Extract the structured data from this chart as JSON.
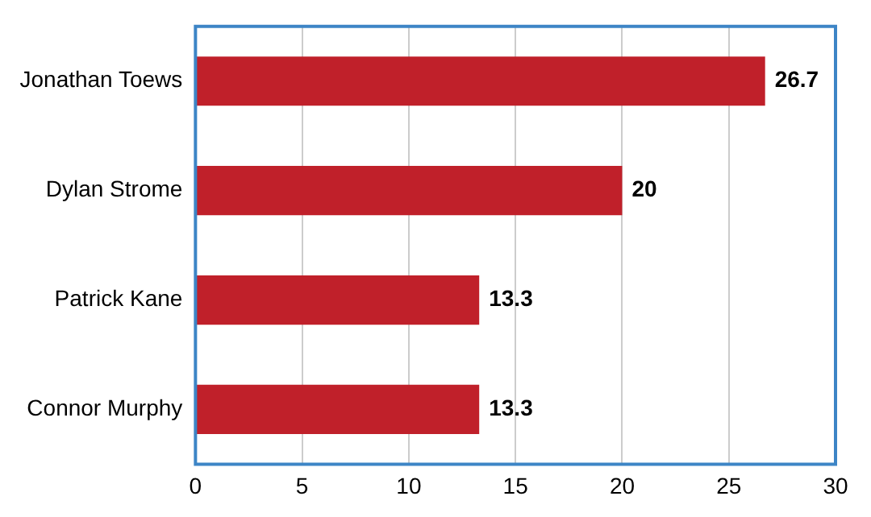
{
  "chart_data": {
    "type": "bar",
    "orientation": "horizontal",
    "categories": [
      "Jonathan Toews",
      "Dylan Strome",
      "Patrick Kane",
      "Connor Murphy"
    ],
    "values": [
      26.7,
      20,
      13.3,
      13.3
    ],
    "color": "#c0202a",
    "xlim": [
      0,
      30
    ],
    "xticks": [
      0,
      5,
      10,
      15,
      20,
      25,
      30
    ],
    "grid": "x",
    "data_labels": true,
    "legend": false
  }
}
